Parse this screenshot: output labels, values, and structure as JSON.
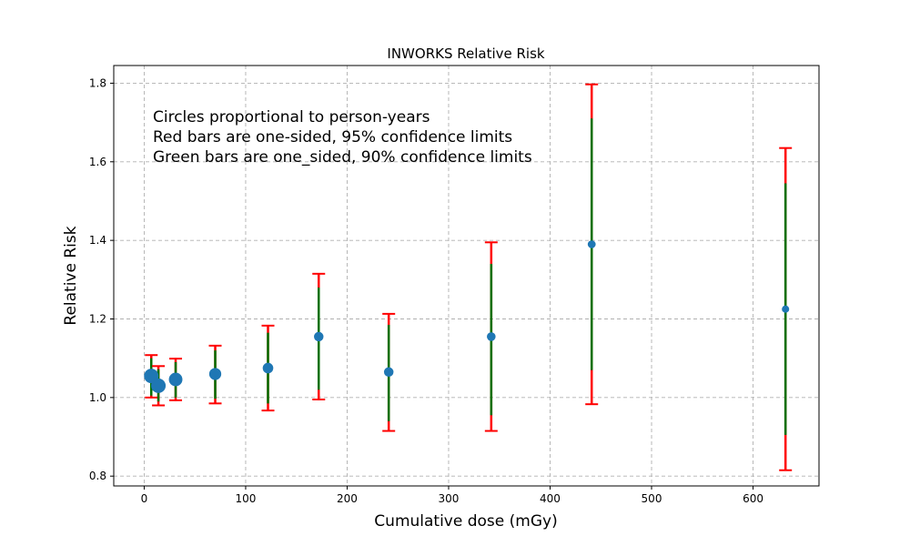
{
  "chart_data": {
    "type": "scatter",
    "title": "INWORKS Relative Risk",
    "xlabel": "Cumulative dose (mGy)",
    "ylabel": "Relative Risk",
    "xlim": [
      -30,
      665
    ],
    "ylim": [
      0.775,
      1.845
    ],
    "x_ticks": [
      0,
      100,
      200,
      300,
      400,
      500,
      600
    ],
    "y_ticks": [
      0.8,
      1.0,
      1.2,
      1.4,
      1.6,
      1.8
    ],
    "x_tick_labels": [
      "0",
      "100",
      "200",
      "300",
      "400",
      "500",
      "600"
    ],
    "y_tick_labels": [
      "0.8",
      "1.0",
      "1.2",
      "1.4",
      "1.6",
      "1.8"
    ],
    "grid": true,
    "annotations": [
      "Circles proportional to person-years",
      "Red bars are one-sided, 95% confidence limits",
      "Green bars are one_sided,  90% confidence limits"
    ],
    "colors": {
      "points": "#1f77b4",
      "ci95": "#ff0000",
      "ci90": "#007000"
    },
    "points": [
      {
        "x": 7,
        "rr": 1.055,
        "ci95": [
          1.0,
          1.108
        ],
        "ci90": [
          1.005,
          1.1
        ],
        "relative_size": 1.0
      },
      {
        "x": 14,
        "rr": 1.03,
        "ci95": [
          0.98,
          1.08
        ],
        "ci90": [
          0.99,
          1.072
        ],
        "relative_size": 1.0
      },
      {
        "x": 31,
        "rr": 1.046,
        "ci95": [
          0.993,
          1.099
        ],
        "ci90": [
          1.0,
          1.09
        ],
        "relative_size": 0.9
      },
      {
        "x": 70,
        "rr": 1.06,
        "ci95": [
          0.985,
          1.132
        ],
        "ci90": [
          0.997,
          1.12
        ],
        "relative_size": 0.75
      },
      {
        "x": 122,
        "rr": 1.075,
        "ci95": [
          0.967,
          1.183
        ],
        "ci90": [
          0.985,
          1.165
        ],
        "relative_size": 0.6
      },
      {
        "x": 172,
        "rr": 1.155,
        "ci95": [
          0.995,
          1.315
        ],
        "ci90": [
          1.02,
          1.28
        ],
        "relative_size": 0.5
      },
      {
        "x": 241,
        "rr": 1.065,
        "ci95": [
          0.915,
          1.213
        ],
        "ci90": [
          0.94,
          1.185
        ],
        "relative_size": 0.5
      },
      {
        "x": 342,
        "rr": 1.155,
        "ci95": [
          0.915,
          1.395
        ],
        "ci90": [
          0.955,
          1.34
        ],
        "relative_size": 0.42
      },
      {
        "x": 441,
        "rr": 1.39,
        "ci95": [
          0.983,
          1.797
        ],
        "ci90": [
          1.07,
          1.71
        ],
        "relative_size": 0.34
      },
      {
        "x": 632,
        "rr": 1.225,
        "ci95": [
          0.815,
          1.635
        ],
        "ci90": [
          0.905,
          1.545
        ],
        "relative_size": 0.28
      }
    ]
  }
}
